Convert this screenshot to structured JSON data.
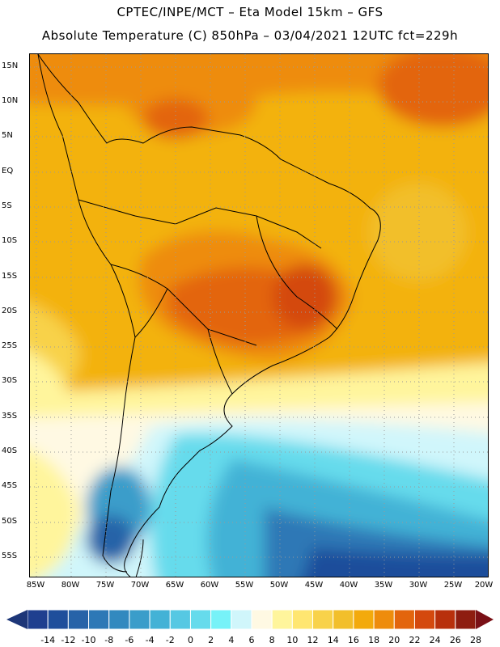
{
  "header": {
    "line1": "CPTEC/INPE/MCT –  Eta Model 15km – GFS",
    "line2": "Absolute Temperature (C) 850hPa – 03/04/2021 12UTC fct=229h"
  },
  "axes": {
    "lat_labels": [
      "15N",
      "10N",
      "5N",
      "EQ",
      "5S",
      "10S",
      "15S",
      "20S",
      "25S",
      "30S",
      "35S",
      "40S",
      "45S",
      "50S",
      "55S"
    ],
    "lon_labels": [
      "85W",
      "80W",
      "75W",
      "70W",
      "65W",
      "60W",
      "55W",
      "50W",
      "45W",
      "40W",
      "35W",
      "30W",
      "25W",
      "20W"
    ]
  },
  "colorbar": {
    "labels": [
      "-14",
      "-12",
      "-10",
      "-8",
      "-6",
      "-4",
      "-2",
      "0",
      "2",
      "4",
      "6",
      "8",
      "10",
      "12",
      "14",
      "16",
      "18",
      "20",
      "22",
      "24",
      "26",
      "28"
    ],
    "colors": [
      "#1f3f8f",
      "#1f4e9b",
      "#2763a8",
      "#2d78b6",
      "#3289bf",
      "#3a9dca",
      "#43b2d6",
      "#56c8e3",
      "#66dbec",
      "#77f2f8",
      "#d0f6fb",
      "#fff9e3",
      "#fff59c",
      "#ffe671",
      "#f8d24a",
      "#f2bf2b",
      "#f3aa0c",
      "#ee8c0c",
      "#e3650d",
      "#d4490e",
      "#b8300c",
      "#8e1d10"
    ],
    "low_arrow_color": "#1d3678",
    "high_arrow_color": "#7a1016"
  }
}
